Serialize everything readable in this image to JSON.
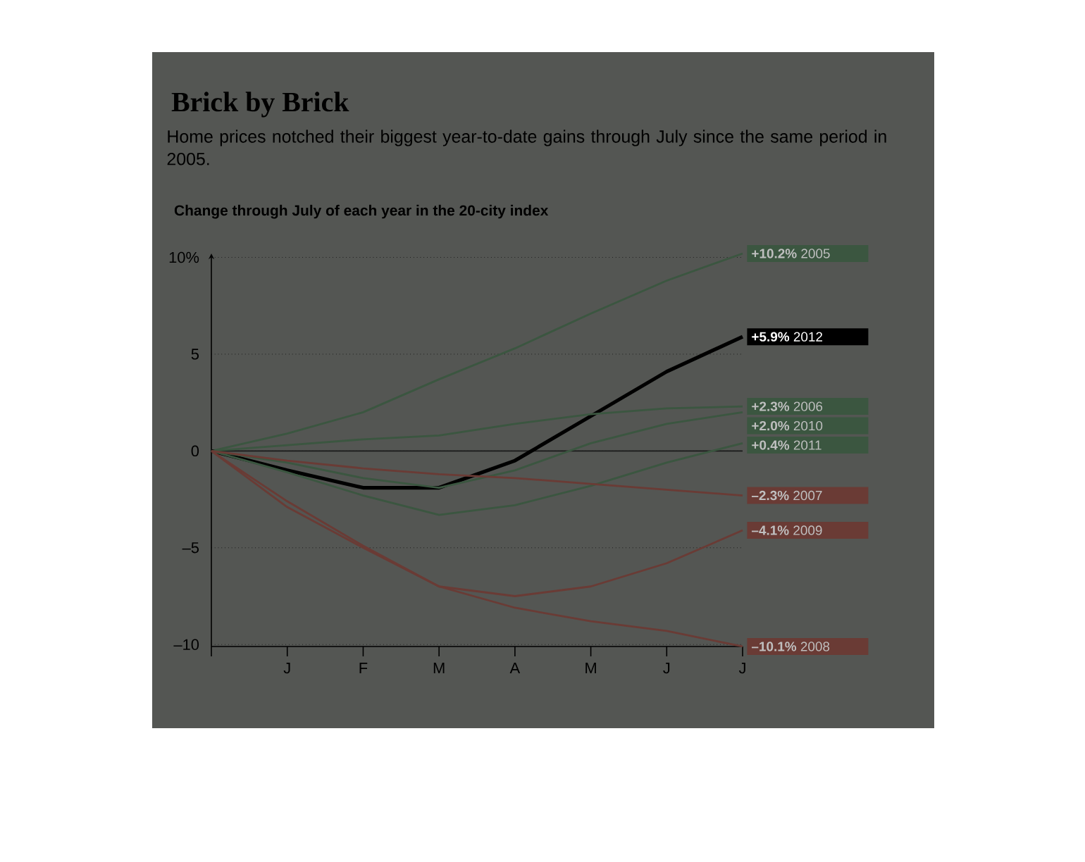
{
  "chart_data": {
    "type": "line",
    "title": "Brick by Brick",
    "subtitle": "Home prices notched their biggest year-to-date gains through July since the same period in 2005.",
    "ylabel": "Change through July of each year in the 20-city index",
    "categories": [
      null,
      "J",
      "F",
      "M",
      "A",
      "M",
      "J",
      "J"
    ],
    "ylim": [
      -10.1,
      10.2
    ],
    "yticks": [
      {
        "value": -10,
        "label": "–10"
      },
      {
        "value": -5,
        "label": "–5"
      },
      0,
      5,
      {
        "value": 10,
        "label": "10%"
      }
    ],
    "grid": "y",
    "marker": "none",
    "line_style": "solid",
    "ref_lines": [
      {
        "axis": "y",
        "value": 0,
        "color": "#1a1a1a"
      }
    ],
    "series": [
      {
        "name": "2005",
        "color": "#3b5640",
        "values": [
          0,
          0.9,
          2.0,
          3.7,
          5.3,
          7.1,
          8.8,
          10.2
        ],
        "value_labels": [
          null,
          null,
          null,
          null,
          null,
          null,
          null,
          "+10.2%"
        ]
      },
      {
        "name": "2012",
        "color": "#000000",
        "values": [
          0,
          -1.0,
          -1.9,
          -1.9,
          -0.5,
          1.8,
          4.1,
          5.9
        ],
        "value_labels": [
          null,
          null,
          null,
          null,
          null,
          null,
          null,
          "+5.9%"
        ]
      },
      {
        "name": "2006",
        "color": "#3b5640",
        "values": [
          0,
          0.3,
          0.6,
          0.8,
          1.4,
          1.9,
          2.2,
          2.3
        ],
        "value_labels": [
          null,
          null,
          null,
          null,
          null,
          null,
          null,
          "+2.3%"
        ]
      },
      {
        "name": "2010",
        "color": "#3b5640",
        "values": [
          0,
          -0.6,
          -1.4,
          -1.9,
          -1.0,
          0.4,
          1.4,
          2.0
        ],
        "value_labels": [
          null,
          null,
          null,
          null,
          null,
          null,
          null,
          "+2.0%"
        ]
      },
      {
        "name": "2011",
        "color": "#3b5640",
        "values": [
          0,
          -1.1,
          -2.3,
          -3.3,
          -2.8,
          -1.8,
          -0.6,
          0.4
        ],
        "value_labels": [
          null,
          null,
          null,
          null,
          null,
          null,
          null,
          "+0.4%"
        ]
      },
      {
        "name": "2007",
        "color": "#6a3b35",
        "values": [
          0,
          -0.5,
          -0.9,
          -1.2,
          -1.4,
          -1.7,
          -2.0,
          -2.3
        ],
        "value_labels": [
          null,
          null,
          null,
          null,
          null,
          null,
          null,
          "–2.3%"
        ]
      },
      {
        "name": "2009",
        "color": "#6a3b35",
        "values": [
          0,
          -2.9,
          -5.0,
          -7.0,
          -7.5,
          -7.0,
          -5.8,
          -4.1
        ],
        "value_labels": [
          null,
          null,
          null,
          null,
          null,
          null,
          null,
          "–4.1%"
        ]
      },
      {
        "name": "2008",
        "color": "#6a3b35",
        "values": [
          0,
          -2.6,
          -4.9,
          -7.0,
          -8.1,
          -8.8,
          -9.3,
          -10.1
        ],
        "value_labels": [
          null,
          null,
          null,
          null,
          null,
          null,
          null,
          "–10.1%"
        ]
      }
    ]
  }
}
